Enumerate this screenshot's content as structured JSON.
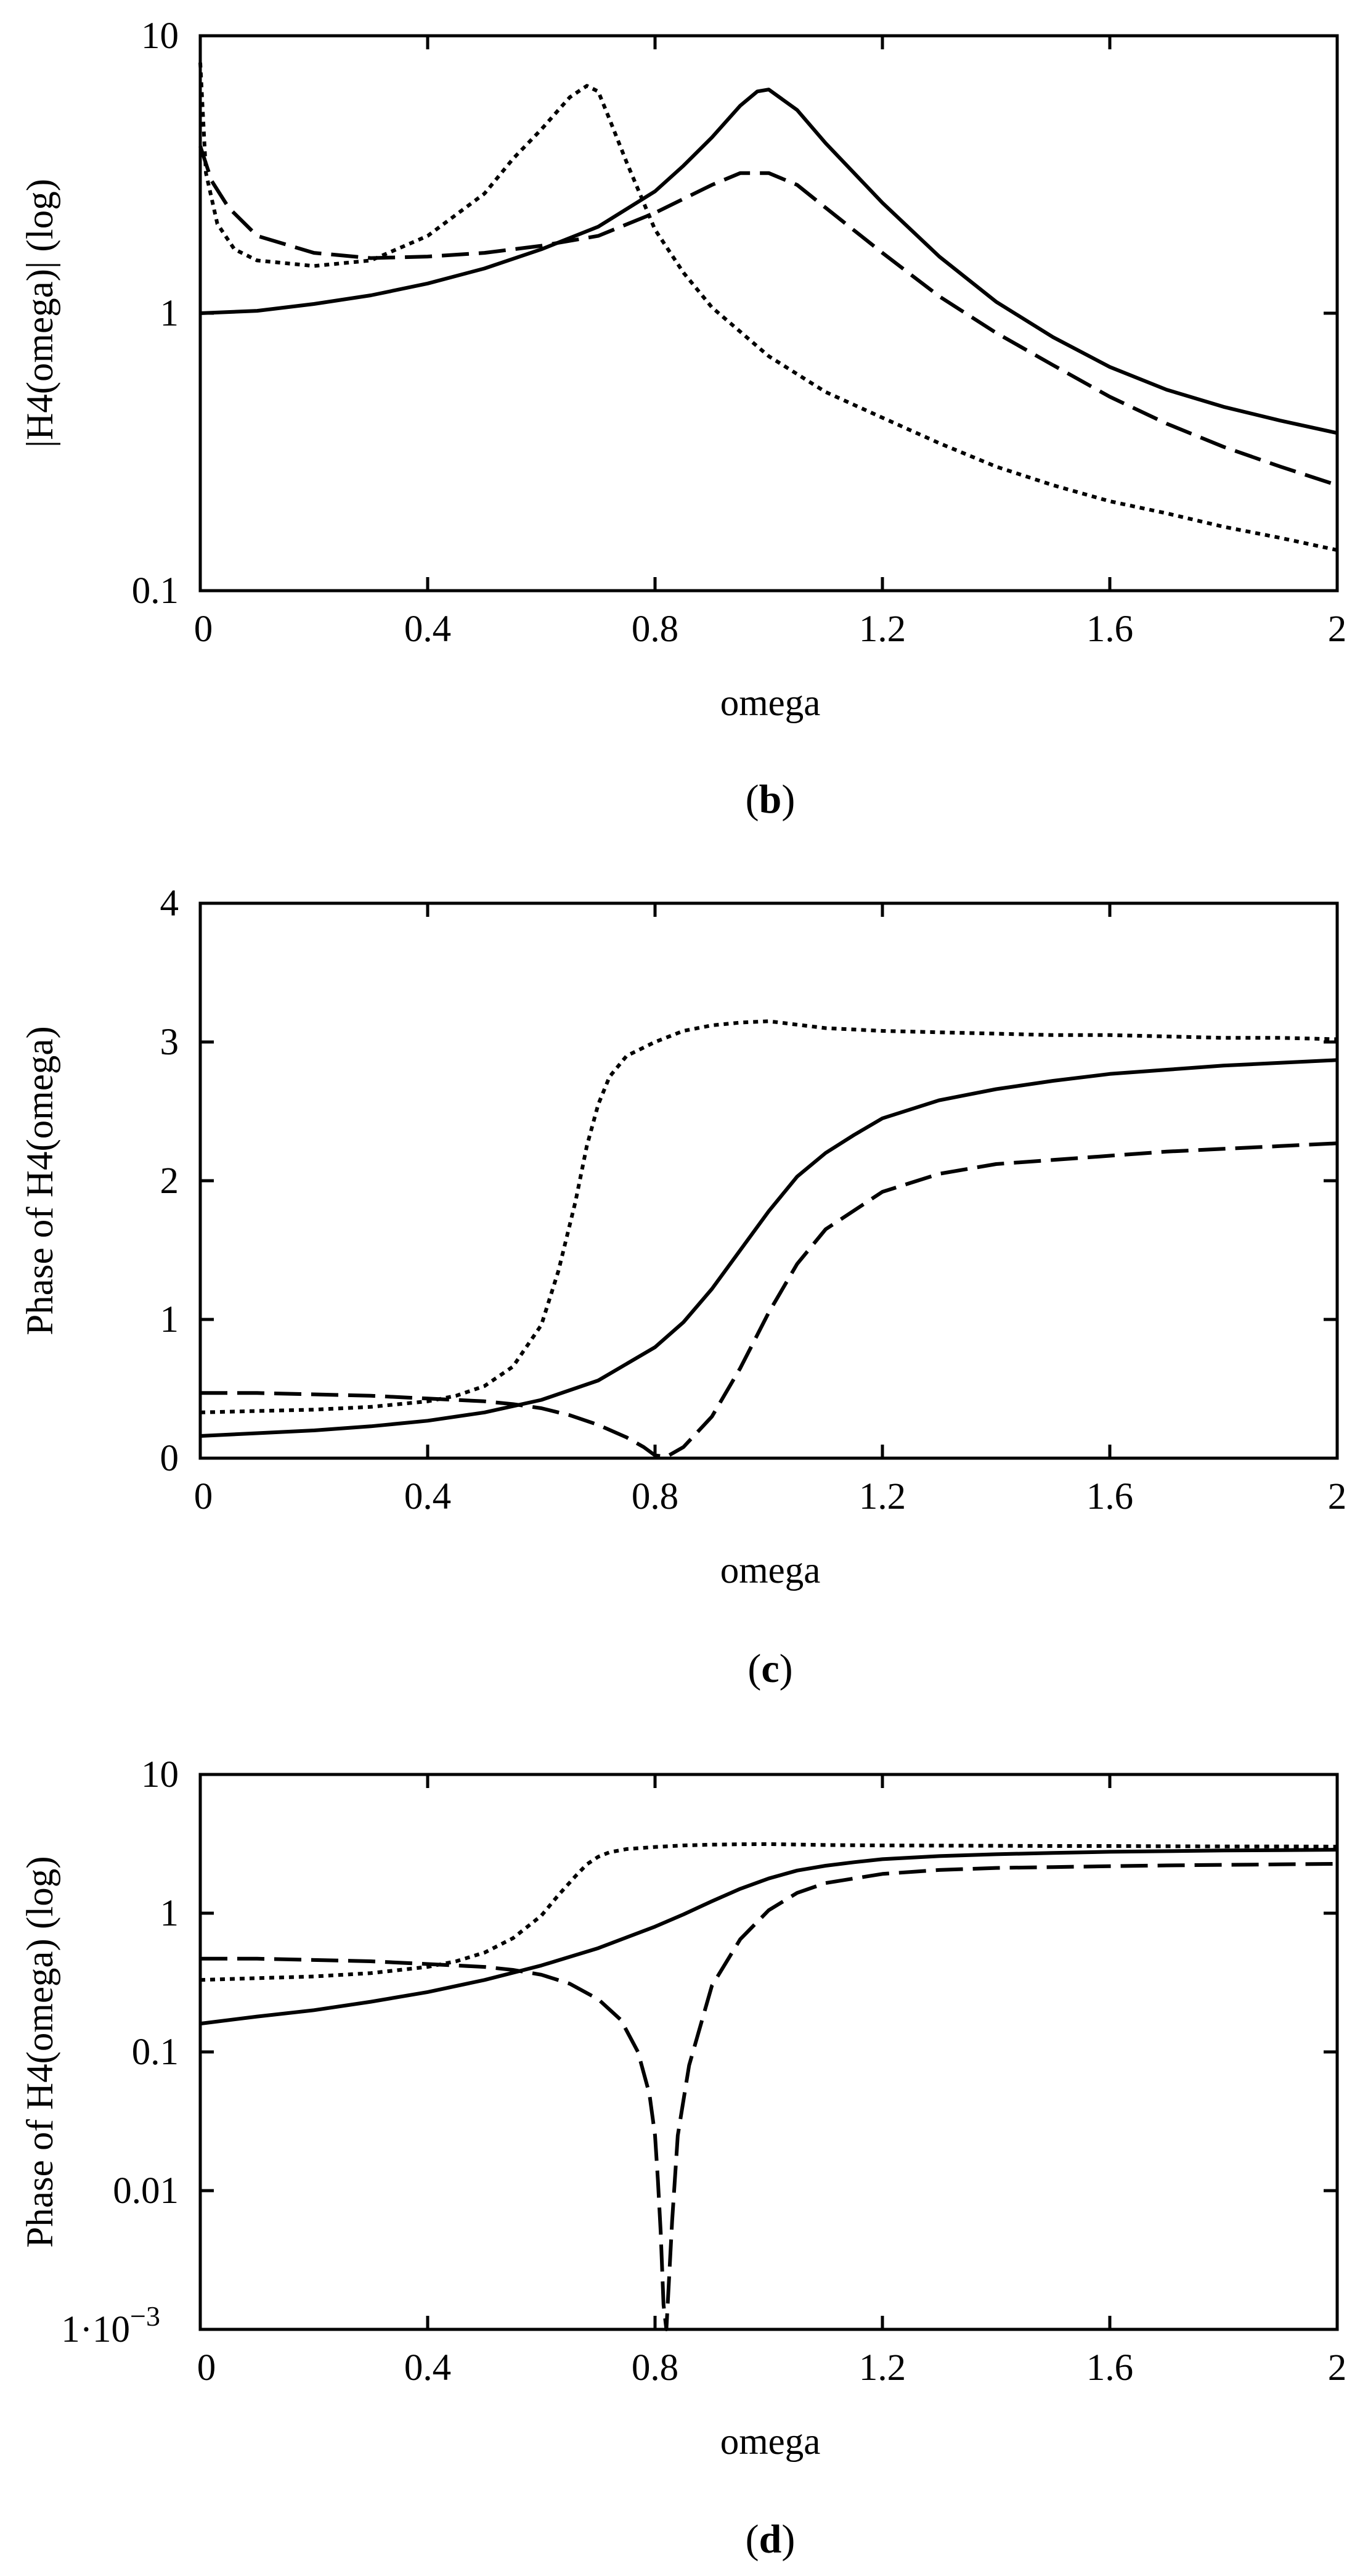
{
  "chart_data": [
    {
      "type": "line",
      "panel": "b",
      "xlabel": "omega",
      "ylabel": "|H4(omega)| (log)",
      "yscale": "log",
      "xlim": [
        0,
        2
      ],
      "ylim": [
        0.1,
        10
      ],
      "xticks": [
        "0",
        "0.4",
        "0.8",
        "1.2",
        "1.6",
        "2"
      ],
      "xtick_values": [
        0,
        0.4,
        0.8,
        1.2,
        1.6,
        2
      ],
      "yticks": [
        "0.1",
        "1",
        "10"
      ],
      "ytick_values": [
        0.1,
        1,
        10
      ],
      "series": [
        {
          "name": "solid",
          "style": "solid",
          "x": [
            0,
            0.1,
            0.2,
            0.3,
            0.4,
            0.5,
            0.6,
            0.7,
            0.8,
            0.85,
            0.9,
            0.95,
            0.98,
            1.0,
            1.05,
            1.1,
            1.2,
            1.3,
            1.4,
            1.5,
            1.6,
            1.7,
            1.8,
            1.9,
            2.0
          ],
          "y": [
            1.0,
            1.02,
            1.08,
            1.16,
            1.28,
            1.45,
            1.7,
            2.05,
            2.75,
            3.4,
            4.3,
            5.6,
            6.3,
            6.4,
            5.4,
            4.1,
            2.5,
            1.6,
            1.1,
            0.82,
            0.64,
            0.53,
            0.46,
            0.41,
            0.37
          ]
        },
        {
          "name": "dashed",
          "style": "dashed",
          "x": [
            0,
            0.02,
            0.05,
            0.1,
            0.2,
            0.3,
            0.4,
            0.5,
            0.6,
            0.7,
            0.8,
            0.9,
            0.95,
            1.0,
            1.05,
            1.1,
            1.2,
            1.3,
            1.4,
            1.5,
            1.6,
            1.7,
            1.8,
            1.9,
            2.0
          ],
          "y": [
            4.0,
            3.0,
            2.4,
            1.9,
            1.65,
            1.58,
            1.6,
            1.65,
            1.75,
            1.9,
            2.3,
            2.9,
            3.2,
            3.2,
            2.9,
            2.4,
            1.65,
            1.15,
            0.85,
            0.65,
            0.5,
            0.4,
            0.33,
            0.28,
            0.24
          ]
        },
        {
          "name": "dotted",
          "style": "dotted",
          "x": [
            0,
            0.01,
            0.03,
            0.06,
            0.1,
            0.2,
            0.3,
            0.4,
            0.5,
            0.55,
            0.6,
            0.65,
            0.68,
            0.7,
            0.72,
            0.75,
            0.8,
            0.85,
            0.9,
            1.0,
            1.1,
            1.2,
            1.3,
            1.4,
            1.5,
            1.6,
            1.7,
            1.8,
            1.9,
            2.0
          ],
          "y": [
            8.0,
            3.2,
            2.1,
            1.7,
            1.55,
            1.48,
            1.55,
            1.9,
            2.7,
            3.6,
            4.6,
            6.0,
            6.6,
            6.3,
            5.0,
            3.5,
            2.0,
            1.4,
            1.05,
            0.7,
            0.52,
            0.42,
            0.34,
            0.28,
            0.24,
            0.21,
            0.19,
            0.17,
            0.155,
            0.14
          ]
        }
      ]
    },
    {
      "type": "line",
      "panel": "c",
      "xlabel": "omega",
      "ylabel": "Phase of H4(omega)",
      "yscale": "linear",
      "xlim": [
        0,
        2
      ],
      "ylim": [
        0,
        4
      ],
      "xticks": [
        "0",
        "0.4",
        "0.8",
        "1.2",
        "1.6",
        "2"
      ],
      "xtick_values": [
        0,
        0.4,
        0.8,
        1.2,
        1.6,
        2
      ],
      "yticks": [
        "0",
        "1",
        "2",
        "3",
        "4"
      ],
      "ytick_values": [
        0,
        1,
        2,
        3,
        4
      ],
      "series": [
        {
          "name": "solid",
          "style": "solid",
          "x": [
            0,
            0.1,
            0.2,
            0.3,
            0.4,
            0.5,
            0.6,
            0.7,
            0.8,
            0.85,
            0.9,
            0.95,
            1.0,
            1.05,
            1.1,
            1.15,
            1.2,
            1.3,
            1.4,
            1.5,
            1.6,
            1.7,
            1.8,
            1.9,
            2.0
          ],
          "y": [
            0.16,
            0.18,
            0.2,
            0.23,
            0.27,
            0.33,
            0.42,
            0.56,
            0.8,
            0.98,
            1.22,
            1.5,
            1.78,
            2.03,
            2.2,
            2.33,
            2.45,
            2.58,
            2.66,
            2.72,
            2.77,
            2.8,
            2.83,
            2.85,
            2.87
          ]
        },
        {
          "name": "dashed",
          "style": "dashed",
          "x": [
            0,
            0.1,
            0.2,
            0.3,
            0.4,
            0.5,
            0.55,
            0.6,
            0.65,
            0.7,
            0.75,
            0.78,
            0.8,
            0.82,
            0.85,
            0.9,
            0.95,
            1.0,
            1.05,
            1.1,
            1.2,
            1.3,
            1.4,
            1.5,
            1.6,
            1.7,
            1.8,
            1.9,
            2.0
          ],
          "y": [
            0.47,
            0.47,
            0.46,
            0.45,
            0.43,
            0.41,
            0.39,
            0.36,
            0.31,
            0.24,
            0.15,
            0.08,
            0.02,
            0.01,
            0.08,
            0.3,
            0.65,
            1.05,
            1.4,
            1.65,
            1.92,
            2.05,
            2.12,
            2.15,
            2.18,
            2.21,
            2.23,
            2.25,
            2.27
          ]
        },
        {
          "name": "dotted",
          "style": "dotted",
          "x": [
            0,
            0.1,
            0.2,
            0.3,
            0.4,
            0.45,
            0.5,
            0.55,
            0.6,
            0.63,
            0.66,
            0.68,
            0.7,
            0.72,
            0.75,
            0.8,
            0.85,
            0.9,
            0.95,
            1.0,
            1.1,
            1.2,
            1.3,
            1.4,
            1.5,
            1.6,
            1.7,
            1.8,
            1.9,
            2.0
          ],
          "y": [
            0.33,
            0.34,
            0.35,
            0.37,
            0.41,
            0.45,
            0.52,
            0.66,
            0.96,
            1.35,
            1.85,
            2.25,
            2.55,
            2.75,
            2.9,
            3.0,
            3.08,
            3.12,
            3.14,
            3.15,
            3.1,
            3.08,
            3.07,
            3.06,
            3.05,
            3.05,
            3.04,
            3.03,
            3.03,
            3.02
          ]
        }
      ]
    },
    {
      "type": "line",
      "panel": "d",
      "xlabel": "omega",
      "ylabel": "Phase of H4(omega) (log)",
      "yscale": "log",
      "xlim": [
        0,
        2
      ],
      "ylim": [
        0.001,
        10
      ],
      "xticks": [
        "0",
        "0.4",
        "0.8",
        "1.2",
        "1.6",
        "2"
      ],
      "xtick_values": [
        0,
        0.4,
        0.8,
        1.2,
        1.6,
        2
      ],
      "yticks": [
        "1·10",
        "0.01",
        "0.1",
        "1",
        "10"
      ],
      "ytick_values": [
        0.001,
        0.01,
        0.1,
        1,
        10
      ],
      "ytick_exponent": "−3",
      "series": [
        {
          "name": "solid",
          "style": "solid",
          "x": [
            0,
            0.1,
            0.2,
            0.3,
            0.4,
            0.5,
            0.6,
            0.7,
            0.8,
            0.85,
            0.9,
            0.95,
            1.0,
            1.05,
            1.1,
            1.15,
            1.2,
            1.3,
            1.4,
            1.5,
            1.6,
            1.7,
            1.8,
            1.9,
            2.0
          ],
          "y": [
            0.16,
            0.18,
            0.2,
            0.23,
            0.27,
            0.33,
            0.42,
            0.56,
            0.8,
            0.98,
            1.22,
            1.5,
            1.78,
            2.03,
            2.2,
            2.33,
            2.45,
            2.58,
            2.66,
            2.72,
            2.77,
            2.8,
            2.83,
            2.85,
            2.87
          ]
        },
        {
          "name": "dashed",
          "style": "dashed",
          "x": [
            0,
            0.1,
            0.2,
            0.3,
            0.4,
            0.5,
            0.55,
            0.6,
            0.65,
            0.7,
            0.74,
            0.77,
            0.79,
            0.8,
            0.805,
            0.81,
            0.815,
            0.82,
            0.83,
            0.84,
            0.86,
            0.9,
            0.95,
            1.0,
            1.05,
            1.1,
            1.2,
            1.3,
            1.4,
            1.5,
            1.6,
            1.7,
            1.8,
            1.9,
            2.0
          ],
          "y": [
            0.47,
            0.47,
            0.46,
            0.45,
            0.43,
            0.41,
            0.39,
            0.36,
            0.31,
            0.24,
            0.17,
            0.1,
            0.05,
            0.025,
            0.012,
            0.005,
            0.0015,
            0.001,
            0.006,
            0.025,
            0.08,
            0.3,
            0.65,
            1.05,
            1.4,
            1.65,
            1.92,
            2.05,
            2.12,
            2.15,
            2.18,
            2.21,
            2.23,
            2.25,
            2.27
          ]
        },
        {
          "name": "dotted",
          "style": "dotted",
          "x": [
            0,
            0.1,
            0.2,
            0.3,
            0.4,
            0.45,
            0.5,
            0.55,
            0.6,
            0.63,
            0.66,
            0.68,
            0.7,
            0.72,
            0.75,
            0.8,
            0.85,
            0.9,
            0.95,
            1.0,
            1.1,
            1.2,
            1.3,
            1.4,
            1.5,
            1.6,
            1.7,
            1.8,
            1.9,
            2.0
          ],
          "y": [
            0.33,
            0.34,
            0.35,
            0.37,
            0.41,
            0.45,
            0.52,
            0.66,
            0.96,
            1.35,
            1.85,
            2.25,
            2.55,
            2.75,
            2.9,
            3.0,
            3.08,
            3.12,
            3.14,
            3.15,
            3.1,
            3.08,
            3.07,
            3.06,
            3.05,
            3.05,
            3.04,
            3.03,
            3.03,
            3.02
          ]
        }
      ]
    }
  ],
  "captions": [
    {
      "panel": "b",
      "open": "(",
      "letter": "b",
      "close": ")"
    },
    {
      "panel": "c",
      "open": "(",
      "letter": "c",
      "close": ")"
    },
    {
      "panel": "d",
      "open": "(",
      "letter": "d",
      "close": ")"
    }
  ]
}
